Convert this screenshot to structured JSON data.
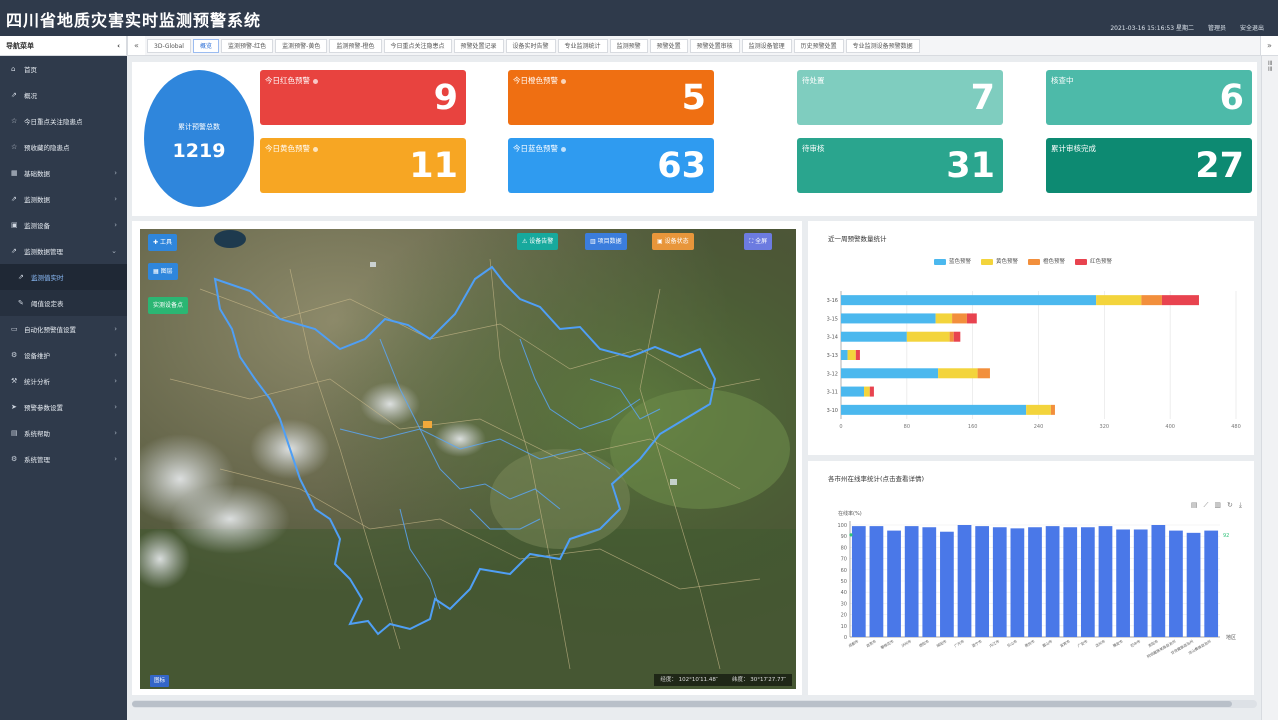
{
  "app": {
    "title": "四川省地质灾害实时监测预警系统",
    "datetime": "2021-03-16 15:16:53 星期二",
    "user": "管理员",
    "logout": "安全退出"
  },
  "nav": {
    "header": "导航菜单"
  },
  "tabs": [
    "3D-Global",
    "概览",
    "监测预警-红色",
    "监测预警-黄色",
    "监测预警-橙色",
    "今日重点关注隐患点",
    "预警处置记录",
    "设备实时告警",
    "专业监测统计",
    "监测预警",
    "预警处置",
    "预警处置审核",
    "监测设备管理",
    "历史预警处置",
    "专业监测设备预警数据"
  ],
  "active_tab_index": 1,
  "sidebar": {
    "items": [
      {
        "label": "首页",
        "icon": "home-icon",
        "arrow": false
      },
      {
        "label": "概况",
        "icon": "chart-icon",
        "arrow": false
      },
      {
        "label": "今日重点关注隐患点",
        "icon": "star-icon",
        "arrow": false
      },
      {
        "label": "预收藏的隐患点",
        "icon": "star-icon",
        "arrow": false
      },
      {
        "label": "基础数据",
        "icon": "calendar-icon",
        "arrow": true
      },
      {
        "label": "监测数据",
        "icon": "chart-icon",
        "arrow": true
      },
      {
        "label": "监测设备",
        "icon": "device-icon",
        "arrow": true
      },
      {
        "label": "监测数据管理",
        "icon": "chart-icon",
        "arrow": true,
        "expanded": true
      },
      {
        "label": "监测值实时",
        "icon": "chart-icon",
        "sub": true,
        "active": true
      },
      {
        "label": "阈值设定表",
        "icon": "edit-icon",
        "sub": true
      },
      {
        "label": "自动化预警值设置",
        "icon": "monitor-icon",
        "arrow": true
      },
      {
        "label": "设备维护",
        "icon": "gear-icon",
        "arrow": true
      },
      {
        "label": "统计分析",
        "icon": "wrench-icon",
        "arrow": true
      },
      {
        "label": "预警参数设置",
        "icon": "send-icon",
        "arrow": true
      },
      {
        "label": "系统帮助",
        "icon": "book-icon",
        "arrow": true
      },
      {
        "label": "系统管理",
        "icon": "gear-icon",
        "arrow": true
      }
    ]
  },
  "stats": {
    "total_label": "累计预警总数",
    "total_value": "1219",
    "cards": [
      {
        "label": "今日红色预警",
        "value": "9",
        "color": "#e8433f"
      },
      {
        "label": "今日橙色预警",
        "value": "5",
        "color": "#ef6f12"
      },
      {
        "label": "待处置",
        "value": "7",
        "color": "#7fcdbf"
      },
      {
        "label": "核查中",
        "value": "6",
        "color": "#4dbaa9"
      },
      {
        "label": "今日黄色预警",
        "value": "11",
        "color": "#f7a623"
      },
      {
        "label": "今日蓝色预警",
        "value": "63",
        "color": "#2f9bf0"
      },
      {
        "label": "待审核",
        "value": "31",
        "color": "#2aa58e"
      },
      {
        "label": "累计审核完成",
        "value": "27",
        "color": "#0d8a72"
      }
    ]
  },
  "map": {
    "tool_label": "工具",
    "layer_label": "图层",
    "legend_label": "实测设备点",
    "btn_alarm": "设备告警",
    "btn_data": "项目数据",
    "btn_status": "设备状态",
    "btn_fullscreen": "全屏",
    "longitude": "经度： 102°10′11.48″",
    "latitude": "纬度： 30°17′27.77″",
    "logo": "图标"
  },
  "chart_data": [
    {
      "type": "bar",
      "orientation": "horizontal",
      "stacked": true,
      "title": "近一周预警数量统计",
      "categories": [
        "3-16",
        "3-15",
        "3-14",
        "3-13",
        "3-12",
        "3-11",
        "3-10"
      ],
      "series": [
        {
          "name": "蓝色预警",
          "color": "#4bb8ee",
          "values": [
            310,
            115,
            80,
            8,
            118,
            28,
            225
          ]
        },
        {
          "name": "黄色预警",
          "color": "#f3d43c",
          "values": [
            55,
            20,
            52,
            10,
            48,
            7,
            30
          ]
        },
        {
          "name": "橙色预警",
          "color": "#f28f3c",
          "values": [
            25,
            18,
            5,
            0,
            15,
            0,
            5
          ]
        },
        {
          "name": "红色预警",
          "color": "#e8434f",
          "values": [
            45,
            12,
            8,
            5,
            0,
            5,
            0
          ]
        }
      ],
      "xlim": [
        0,
        480
      ],
      "legend_position": "top-center"
    },
    {
      "type": "bar",
      "title": "各市州在线率统计(点击查看详情)",
      "ylabel": "在线率(%)",
      "xlabel": "地区",
      "ylim": [
        0,
        100
      ],
      "yticks": [
        0,
        10,
        20,
        30,
        40,
        50,
        60,
        70,
        80,
        90,
        100
      ],
      "color": "#4a78e8",
      "categories": [
        "成都市",
        "自贡市",
        "攀枝花市",
        "泸州市",
        "德阳市",
        "绵阳市",
        "广元市",
        "遂宁市",
        "内江市",
        "乐山市",
        "南充市",
        "眉山市",
        "宜宾市",
        "广安市",
        "达州市",
        "雅安市",
        "巴中市",
        "资阳市",
        "阿坝藏族羌族自治州",
        "甘孜藏族自治州",
        "凉山彝族自治州"
      ],
      "values": [
        99,
        99,
        95,
        99,
        98,
        94,
        100,
        99,
        98,
        97,
        98,
        99,
        98,
        98,
        99,
        96,
        96,
        100,
        95,
        93,
        95
      ],
      "markline_label": "92"
    }
  ]
}
